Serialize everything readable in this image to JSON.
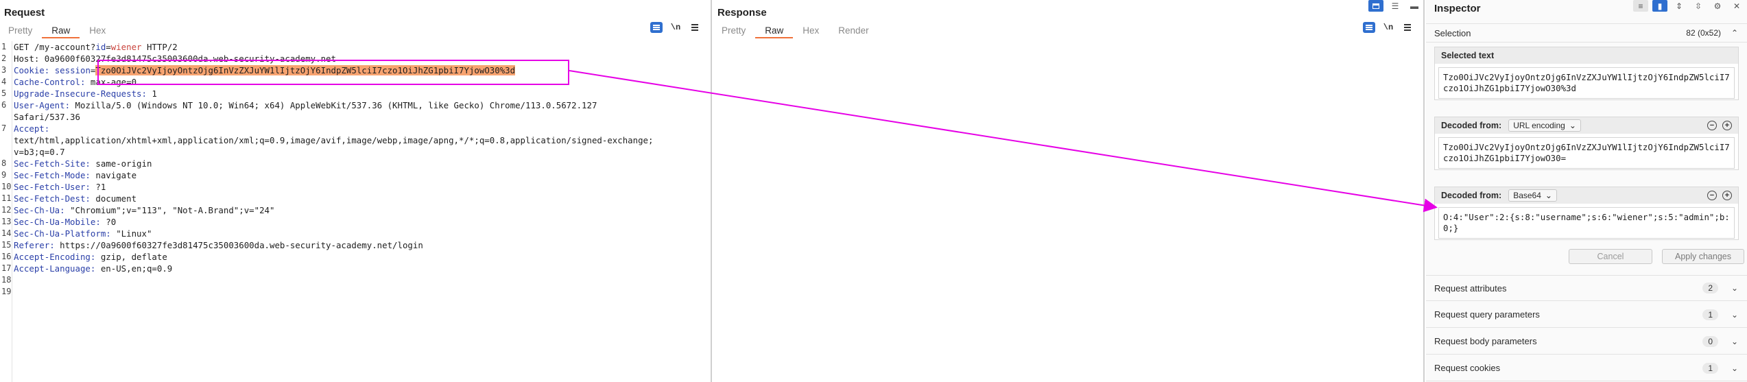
{
  "request": {
    "title": "Request",
    "tabs": [
      {
        "label": "Pretty",
        "active": false
      },
      {
        "label": "Raw",
        "active": true
      },
      {
        "label": "Hex",
        "active": false
      }
    ],
    "tools": {
      "newline": "\\n"
    },
    "lines": [
      {
        "num": "1",
        "parts": [
          {
            "t": "GET /my-account?"
          },
          {
            "t": "id",
            "c": "hk"
          },
          {
            "t": "="
          },
          {
            "t": "wiener",
            "c": "pv"
          },
          {
            "t": " HTTP/2"
          }
        ]
      },
      {
        "num": "2",
        "parts": [
          {
            "t": "Host: 0a9600f60327fe3d81475c35003600da.web-security-academy.net"
          }
        ]
      },
      {
        "num": "3",
        "parts": [
          {
            "t": "Cookie: ",
            "c": "hk"
          },
          {
            "t": "session",
            "c": "hk"
          },
          {
            "t": "="
          },
          {
            "t": "Tzo0OiJVc2VyIjoyOntzOjg6InVzZXJuYW1lIjtzOjY6IndpZW5lciI7czo1OiJhZG1pbiI7YjowO30%3d",
            "c": "sel"
          }
        ]
      },
      {
        "num": "4",
        "parts": [
          {
            "t": "Cache-Control:",
            "c": "hk"
          },
          {
            "t": " max-age=0"
          }
        ]
      },
      {
        "num": "5",
        "parts": [
          {
            "t": "Upgrade-Insecure-Requests:",
            "c": "hk"
          },
          {
            "t": " 1"
          }
        ]
      },
      {
        "num": "6",
        "parts": [
          {
            "t": "User-Agent:",
            "c": "hk"
          },
          {
            "t": " Mozilla/5.0 (Windows NT 10.0; Win64; x64) AppleWebKit/537.36 (KHTML, like Gecko) Chrome/113.0.5672.127"
          }
        ]
      },
      {
        "num": "",
        "parts": [
          {
            "t": "Safari/537.36"
          }
        ]
      },
      {
        "num": "7",
        "parts": [
          {
            "t": "Accept:",
            "c": "hk"
          }
        ]
      },
      {
        "num": "",
        "parts": [
          {
            "t": "text/html,application/xhtml+xml,application/xml;q=0.9,image/avif,image/webp,image/apng,*/*;q=0.8,application/signed-exchange;"
          }
        ]
      },
      {
        "num": "",
        "parts": [
          {
            "t": "v=b3;q=0.7"
          }
        ]
      },
      {
        "num": "8",
        "parts": [
          {
            "t": "Sec-Fetch-Site:",
            "c": "hk"
          },
          {
            "t": " same-origin"
          }
        ]
      },
      {
        "num": "9",
        "parts": [
          {
            "t": "Sec-Fetch-Mode:",
            "c": "hk"
          },
          {
            "t": " navigate"
          }
        ]
      },
      {
        "num": "10",
        "parts": [
          {
            "t": "Sec-Fetch-User:",
            "c": "hk"
          },
          {
            "t": " ?1"
          }
        ]
      },
      {
        "num": "11",
        "parts": [
          {
            "t": "Sec-Fetch-Dest:",
            "c": "hk"
          },
          {
            "t": " document"
          }
        ]
      },
      {
        "num": "12",
        "parts": [
          {
            "t": "Sec-Ch-Ua:",
            "c": "hk"
          },
          {
            "t": " \"Chromium\";v=\"113\", \"Not-A.Brand\";v=\"24\""
          }
        ]
      },
      {
        "num": "13",
        "parts": [
          {
            "t": "Sec-Ch-Ua-Mobile:",
            "c": "hk"
          },
          {
            "t": " ?0"
          }
        ]
      },
      {
        "num": "14",
        "parts": [
          {
            "t": "Sec-Ch-Ua-Platform:",
            "c": "hk"
          },
          {
            "t": " \"Linux\""
          }
        ]
      },
      {
        "num": "15",
        "parts": [
          {
            "t": "Referer:",
            "c": "hk"
          },
          {
            "t": " https://0a9600f60327fe3d81475c35003600da.web-security-academy.net/login"
          }
        ]
      },
      {
        "num": "16",
        "parts": [
          {
            "t": "Accept-Encoding:",
            "c": "hk"
          },
          {
            "t": " gzip, deflate"
          }
        ]
      },
      {
        "num": "17",
        "parts": [
          {
            "t": "Accept-Language:",
            "c": "hk"
          },
          {
            "t": " en-US,en;q=0.9"
          }
        ]
      },
      {
        "num": "18",
        "parts": []
      },
      {
        "num": "19",
        "parts": []
      }
    ]
  },
  "response": {
    "title": "Response",
    "tabs": [
      {
        "label": "Pretty",
        "active": false
      },
      {
        "label": "Raw",
        "active": true
      },
      {
        "label": "Hex",
        "active": false
      },
      {
        "label": "Render",
        "active": false
      }
    ],
    "tools": {
      "newline": "\\n"
    }
  },
  "inspector": {
    "title": "Inspector",
    "selection_label": "Selection",
    "selection_count": "82 (0x52)",
    "selected_text_label": "Selected text",
    "selected_text": "Tzo0OiJVc2VyIjoyOntzOjg6InVzZXJuYW1lIjtzOjY6IndpZW5lciI7czo1OiJhZG1pbiI7YjowO30%3d",
    "decoded": [
      {
        "label": "Decoded from:",
        "encoding": "URL encoding",
        "value": "Tzo0OiJVc2VyIjoyOntzOjg6InVzZXJuYW1lIjtzOjY6IndpZW5lciI7czo1OiJhZG1pbiI7YjowO30="
      },
      {
        "label": "Decoded from:",
        "encoding": "Base64",
        "value": "O:4:\"User\":2:{s:8:\"username\";s:6:\"wiener\";s:5:\"admin\";b:0;}"
      }
    ],
    "cancel_label": "Cancel",
    "apply_label": "Apply changes",
    "sections": [
      {
        "label": "Request attributes",
        "count": "2"
      },
      {
        "label": "Request query parameters",
        "count": "1"
      },
      {
        "label": "Request body parameters",
        "count": "0"
      },
      {
        "label": "Request cookies",
        "count": "1"
      }
    ]
  },
  "colors": {
    "accent_tab": "#f0713a",
    "header_key": "#2a3fa8",
    "param_value": "#c9433c",
    "selection": "#f7a370",
    "annotation": "#e600e6",
    "tool_blue": "#2f6fcf"
  }
}
